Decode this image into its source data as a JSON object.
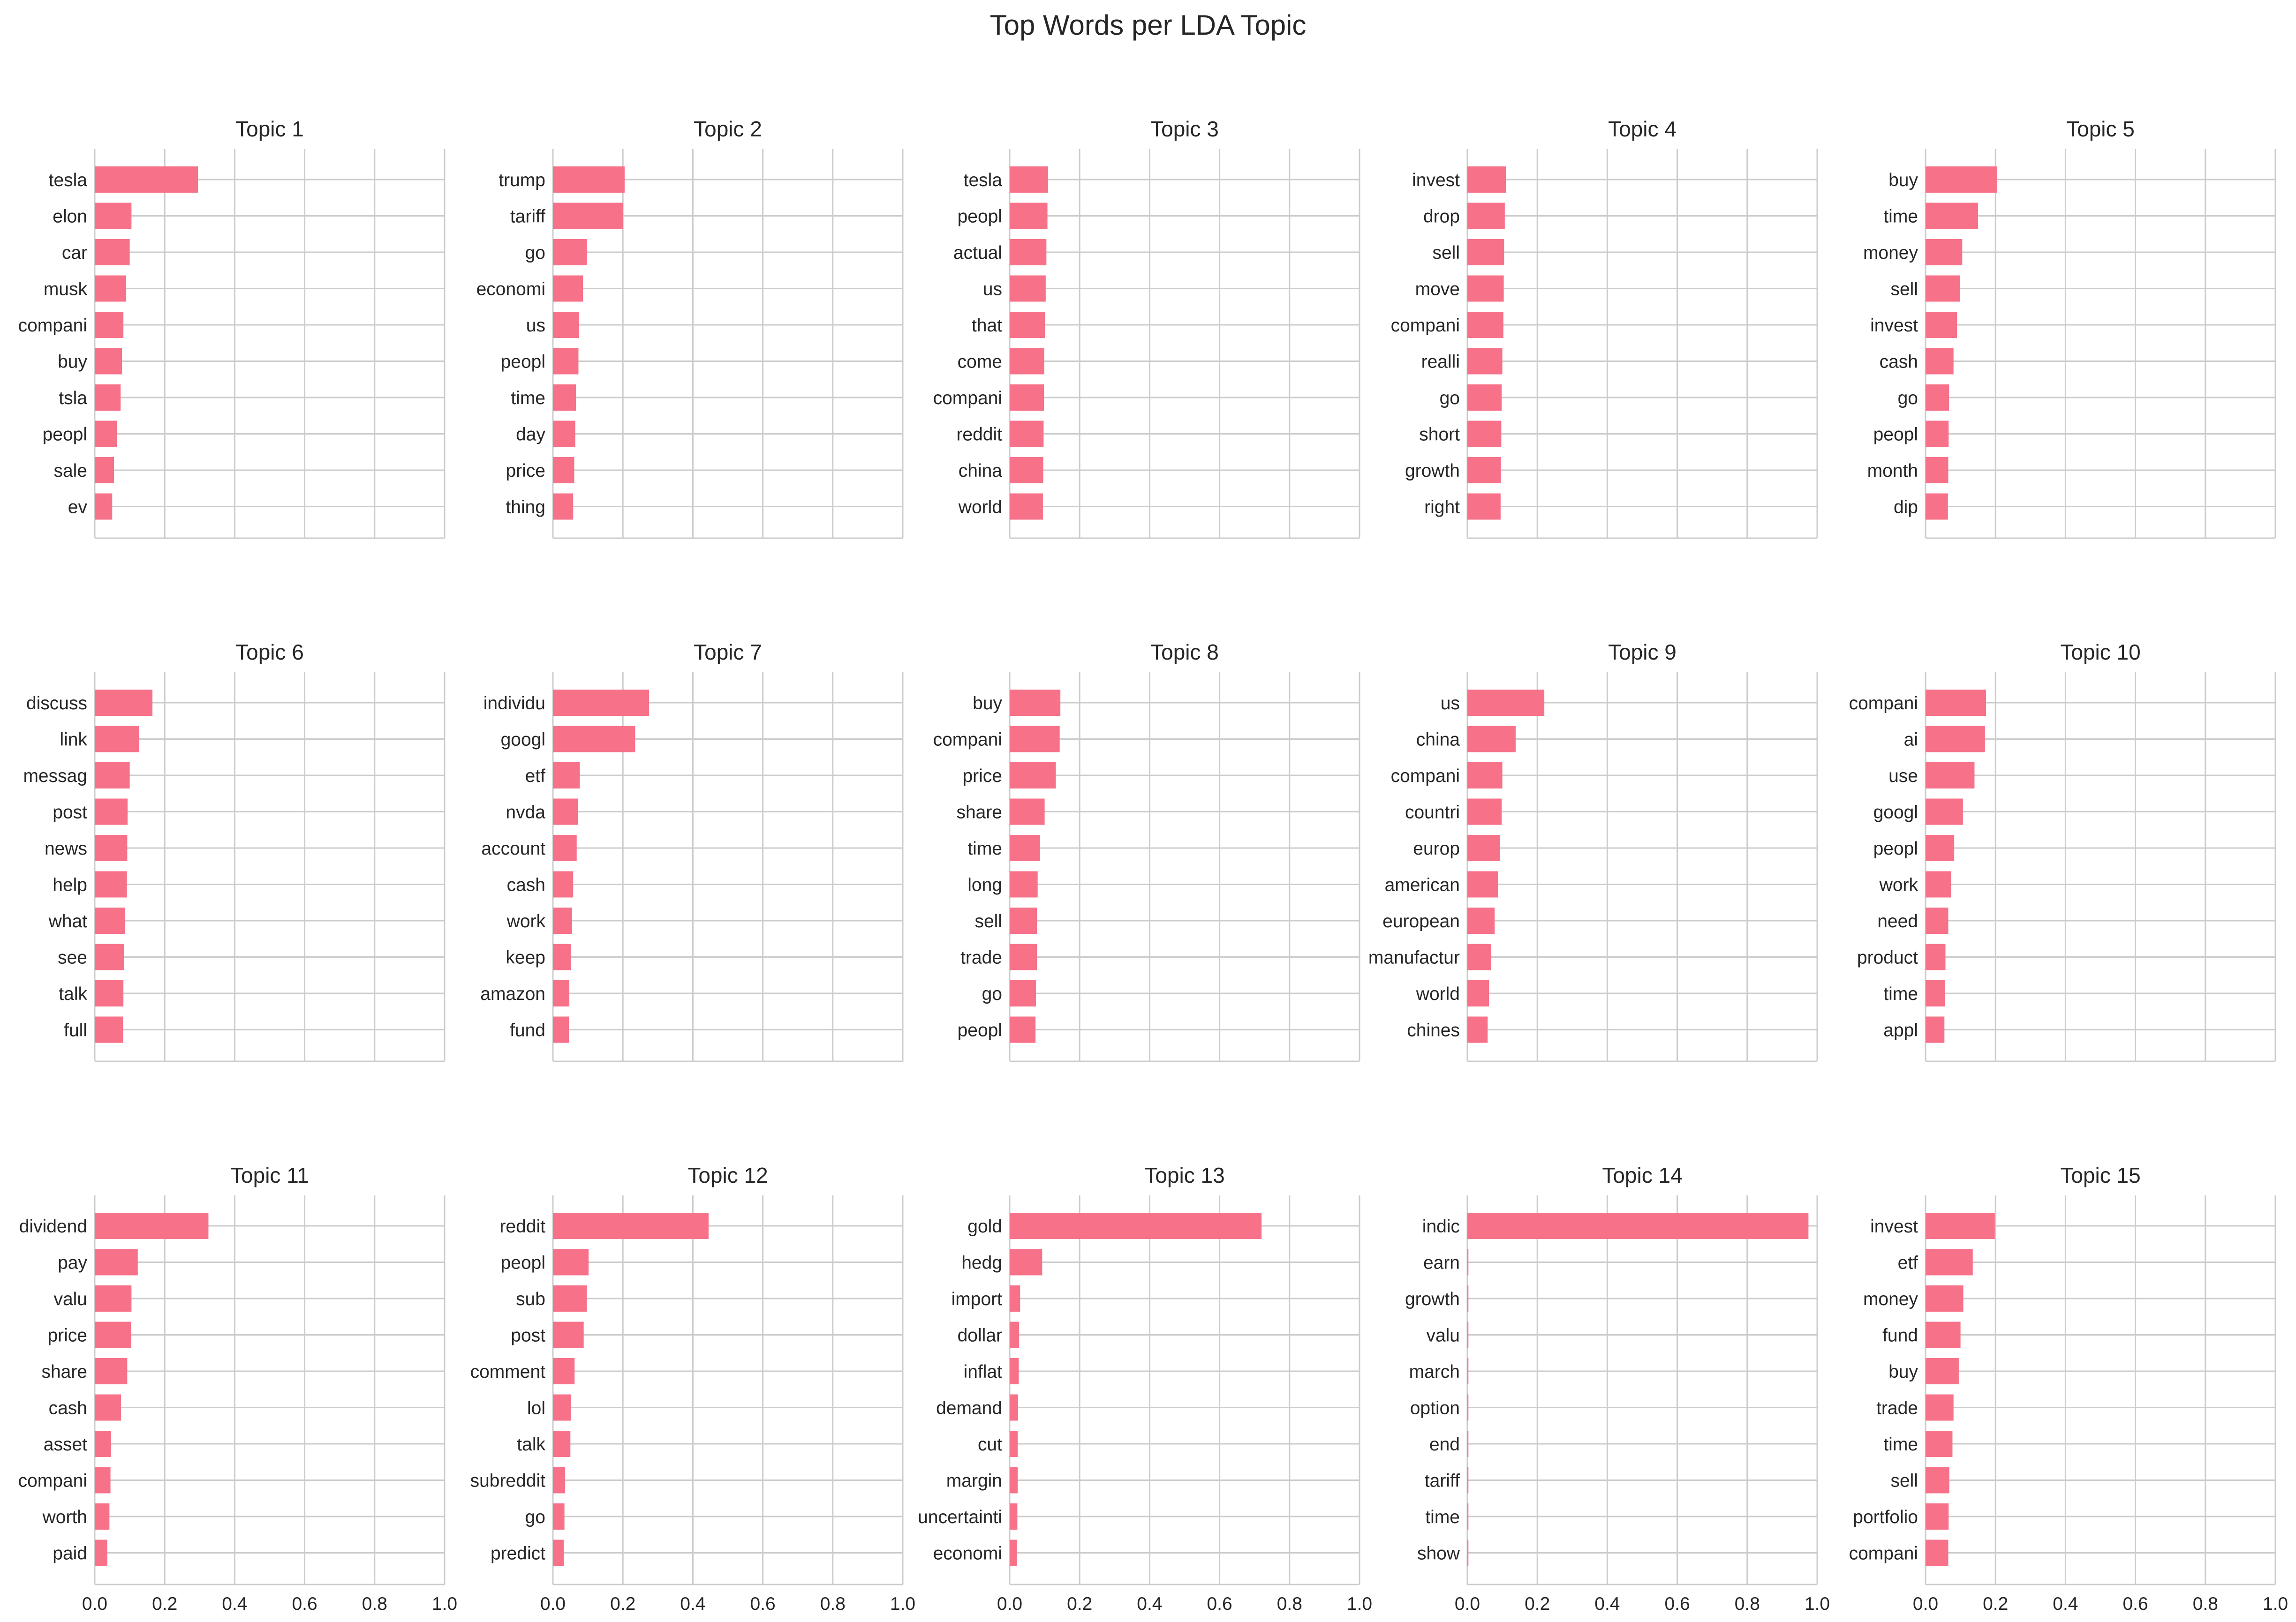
{
  "figure": {
    "title": "Top Words per LDA Topic"
  },
  "style": {
    "bar_color": "#f77189",
    "grid_color": "#cccccc",
    "text_color": "#262626",
    "background": "#ffffff"
  },
  "chart_data": [
    {
      "type": "bar",
      "orientation": "horizontal",
      "title": "Topic 1",
      "categories": [
        "tesla",
        "elon",
        "car",
        "musk",
        "compani",
        "buy",
        "tsla",
        "peopl",
        "sale",
        "ev"
      ],
      "values": [
        0.295,
        0.105,
        0.1,
        0.09,
        0.082,
        0.078,
        0.074,
        0.063,
        0.055,
        0.05
      ],
      "xlim": [
        0,
        1
      ],
      "xticks": [
        "0.0",
        "0.2",
        "0.4",
        "0.6",
        "0.8",
        "1.0"
      ],
      "grid": true
    },
    {
      "type": "bar",
      "orientation": "horizontal",
      "title": "Topic 2",
      "categories": [
        "trump",
        "tariff",
        "go",
        "economi",
        "us",
        "peopl",
        "time",
        "day",
        "price",
        "thing"
      ],
      "values": [
        0.205,
        0.2,
        0.098,
        0.086,
        0.075,
        0.073,
        0.066,
        0.064,
        0.061,
        0.058
      ],
      "xlim": [
        0,
        1
      ],
      "xticks": [
        "0.0",
        "0.2",
        "0.4",
        "0.6",
        "0.8",
        "1.0"
      ],
      "grid": true
    },
    {
      "type": "bar",
      "orientation": "horizontal",
      "title": "Topic 3",
      "categories": [
        "tesla",
        "peopl",
        "actual",
        "us",
        "that",
        "come",
        "compani",
        "reddit",
        "china",
        "world"
      ],
      "values": [
        0.11,
        0.108,
        0.105,
        0.103,
        0.101,
        0.099,
        0.098,
        0.097,
        0.096,
        0.095
      ],
      "xlim": [
        0,
        1
      ],
      "xticks": [
        "0.0",
        "0.2",
        "0.4",
        "0.6",
        "0.8",
        "1.0"
      ],
      "grid": true
    },
    {
      "type": "bar",
      "orientation": "horizontal",
      "title": "Topic 4",
      "categories": [
        "invest",
        "drop",
        "sell",
        "move",
        "compani",
        "realli",
        "go",
        "short",
        "growth",
        "right"
      ],
      "values": [
        0.11,
        0.107,
        0.105,
        0.104,
        0.103,
        0.1,
        0.098,
        0.097,
        0.096,
        0.095
      ],
      "xlim": [
        0,
        1
      ],
      "xticks": [
        "0.0",
        "0.2",
        "0.4",
        "0.6",
        "0.8",
        "1.0"
      ],
      "grid": true
    },
    {
      "type": "bar",
      "orientation": "horizontal",
      "title": "Topic 5",
      "categories": [
        "buy",
        "time",
        "money",
        "sell",
        "invest",
        "cash",
        "go",
        "peopl",
        "month",
        "dip"
      ],
      "values": [
        0.205,
        0.15,
        0.105,
        0.098,
        0.09,
        0.08,
        0.067,
        0.066,
        0.065,
        0.064
      ],
      "xlim": [
        0,
        1
      ],
      "xticks": [
        "0.0",
        "0.2",
        "0.4",
        "0.6",
        "0.8",
        "1.0"
      ],
      "grid": true
    },
    {
      "type": "bar",
      "orientation": "horizontal",
      "title": "Topic 6",
      "categories": [
        "discuss",
        "link",
        "messag",
        "post",
        "news",
        "help",
        "what",
        "see",
        "talk",
        "full"
      ],
      "values": [
        0.165,
        0.127,
        0.1,
        0.094,
        0.093,
        0.092,
        0.086,
        0.084,
        0.082,
        0.081
      ],
      "xlim": [
        0,
        1
      ],
      "xticks": [
        "0.0",
        "0.2",
        "0.4",
        "0.6",
        "0.8",
        "1.0"
      ],
      "grid": true
    },
    {
      "type": "bar",
      "orientation": "horizontal",
      "title": "Topic 7",
      "categories": [
        "individu",
        "googl",
        "etf",
        "nvda",
        "account",
        "cash",
        "work",
        "keep",
        "amazon",
        "fund"
      ],
      "values": [
        0.275,
        0.235,
        0.077,
        0.072,
        0.068,
        0.058,
        0.055,
        0.052,
        0.047,
        0.046
      ],
      "xlim": [
        0,
        1
      ],
      "xticks": [
        "0.0",
        "0.2",
        "0.4",
        "0.6",
        "0.8",
        "1.0"
      ],
      "grid": true
    },
    {
      "type": "bar",
      "orientation": "horizontal",
      "title": "Topic 8",
      "categories": [
        "buy",
        "compani",
        "price",
        "share",
        "time",
        "long",
        "sell",
        "trade",
        "go",
        "peopl"
      ],
      "values": [
        0.145,
        0.143,
        0.132,
        0.1,
        0.087,
        0.08,
        0.078,
        0.078,
        0.075,
        0.074
      ],
      "xlim": [
        0,
        1
      ],
      "xticks": [
        "0.0",
        "0.2",
        "0.4",
        "0.6",
        "0.8",
        "1.0"
      ],
      "grid": true
    },
    {
      "type": "bar",
      "orientation": "horizontal",
      "title": "Topic 9",
      "categories": [
        "us",
        "china",
        "compani",
        "countri",
        "europ",
        "american",
        "european",
        "manufactur",
        "world",
        "chines"
      ],
      "values": [
        0.22,
        0.138,
        0.1,
        0.098,
        0.093,
        0.088,
        0.078,
        0.068,
        0.062,
        0.058
      ],
      "xlim": [
        0,
        1
      ],
      "xticks": [
        "0.0",
        "0.2",
        "0.4",
        "0.6",
        "0.8",
        "1.0"
      ],
      "grid": true
    },
    {
      "type": "bar",
      "orientation": "horizontal",
      "title": "Topic 10",
      "categories": [
        "compani",
        "ai",
        "use",
        "googl",
        "peopl",
        "work",
        "need",
        "product",
        "time",
        "appl"
      ],
      "values": [
        0.173,
        0.17,
        0.14,
        0.107,
        0.082,
        0.073,
        0.065,
        0.057,
        0.056,
        0.054
      ],
      "xlim": [
        0,
        1
      ],
      "xticks": [
        "0.0",
        "0.2",
        "0.4",
        "0.6",
        "0.8",
        "1.0"
      ],
      "grid": true
    },
    {
      "type": "bar",
      "orientation": "horizontal",
      "title": "Topic 11",
      "categories": [
        "dividend",
        "pay",
        "valu",
        "price",
        "share",
        "cash",
        "asset",
        "compani",
        "worth",
        "paid"
      ],
      "values": [
        0.325,
        0.123,
        0.105,
        0.104,
        0.093,
        0.075,
        0.047,
        0.045,
        0.042,
        0.036
      ],
      "xlim": [
        0,
        1
      ],
      "xticks": [
        "0.0",
        "0.2",
        "0.4",
        "0.6",
        "0.8",
        "1.0"
      ],
      "grid": true
    },
    {
      "type": "bar",
      "orientation": "horizontal",
      "title": "Topic 12",
      "categories": [
        "reddit",
        "peopl",
        "sub",
        "post",
        "comment",
        "lol",
        "talk",
        "subreddit",
        "go",
        "predict"
      ],
      "values": [
        0.445,
        0.102,
        0.097,
        0.088,
        0.062,
        0.052,
        0.05,
        0.035,
        0.033,
        0.031
      ],
      "xlim": [
        0,
        1
      ],
      "xticks": [
        "0.0",
        "0.2",
        "0.4",
        "0.6",
        "0.8",
        "1.0"
      ],
      "grid": true
    },
    {
      "type": "bar",
      "orientation": "horizontal",
      "title": "Topic 13",
      "categories": [
        "gold",
        "hedg",
        "import",
        "dollar",
        "inflat",
        "demand",
        "cut",
        "margin",
        "uncertainti",
        "economi"
      ],
      "values": [
        0.72,
        0.093,
        0.03,
        0.027,
        0.026,
        0.024,
        0.023,
        0.023,
        0.022,
        0.021
      ],
      "xlim": [
        0,
        1
      ],
      "xticks": [
        "0.0",
        "0.2",
        "0.4",
        "0.6",
        "0.8",
        "1.0"
      ],
      "grid": true
    },
    {
      "type": "bar",
      "orientation": "horizontal",
      "title": "Topic 14",
      "categories": [
        "indic",
        "earn",
        "growth",
        "valu",
        "march",
        "option",
        "end",
        "tariff",
        "time",
        "show"
      ],
      "values": [
        0.975,
        0.003,
        0.003,
        0.003,
        0.003,
        0.003,
        0.003,
        0.003,
        0.003,
        0.003
      ],
      "xlim": [
        0,
        1
      ],
      "xticks": [
        "0.0",
        "0.2",
        "0.4",
        "0.6",
        "0.8",
        "1.0"
      ],
      "grid": true
    },
    {
      "type": "bar",
      "orientation": "horizontal",
      "title": "Topic 15",
      "categories": [
        "invest",
        "etf",
        "money",
        "fund",
        "buy",
        "trade",
        "time",
        "sell",
        "portfolio",
        "compani"
      ],
      "values": [
        0.198,
        0.135,
        0.108,
        0.1,
        0.095,
        0.08,
        0.077,
        0.068,
        0.066,
        0.065
      ],
      "xlim": [
        0,
        1
      ],
      "xticks": [
        "0.0",
        "0.2",
        "0.4",
        "0.6",
        "0.8",
        "1.0"
      ],
      "grid": true
    }
  ]
}
